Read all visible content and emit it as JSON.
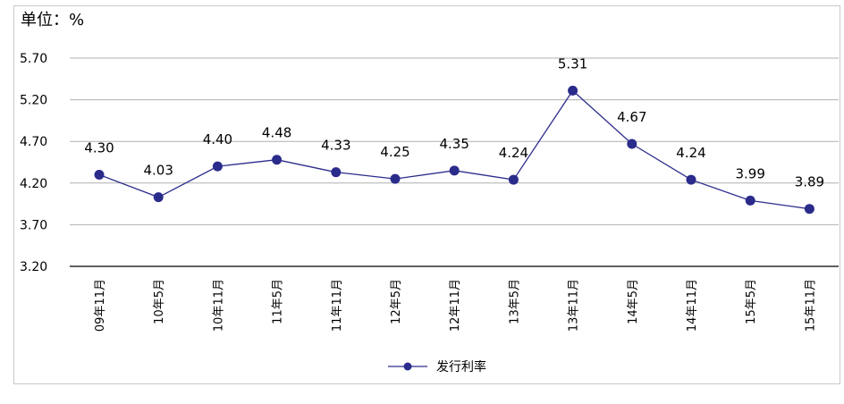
{
  "chart_data": {
    "type": "line",
    "unit_label": "单位：%",
    "categories": [
      "09年11月",
      "10年5月",
      "10年11月",
      "11年5月",
      "11年11月",
      "12年5月",
      "12年11月",
      "13年5月",
      "13年11月",
      "14年5月",
      "14年11月",
      "15年5月",
      "15年11月"
    ],
    "series": [
      {
        "name": "发行利率",
        "values": [
          4.3,
          4.03,
          4.4,
          4.48,
          4.33,
          4.25,
          4.35,
          4.24,
          5.31,
          4.67,
          4.24,
          3.99,
          3.89
        ],
        "labels": [
          "4.30",
          "4.03",
          "4.40",
          "4.48",
          "4.33",
          "4.25",
          "4.35",
          "4.24",
          "5.31",
          "4.67",
          "4.24",
          "3.99",
          "3.89"
        ]
      }
    ],
    "y_ticks": [
      "3.20",
      "3.70",
      "4.20",
      "4.70",
      "5.20",
      "5.70"
    ],
    "ylim": [
      3.2,
      5.7
    ],
    "grid": true,
    "legend_position": "bottom",
    "line_color": "#2b2b8c",
    "marker_color": "#2b2b8c",
    "grid_color": "#b0b0b0"
  }
}
